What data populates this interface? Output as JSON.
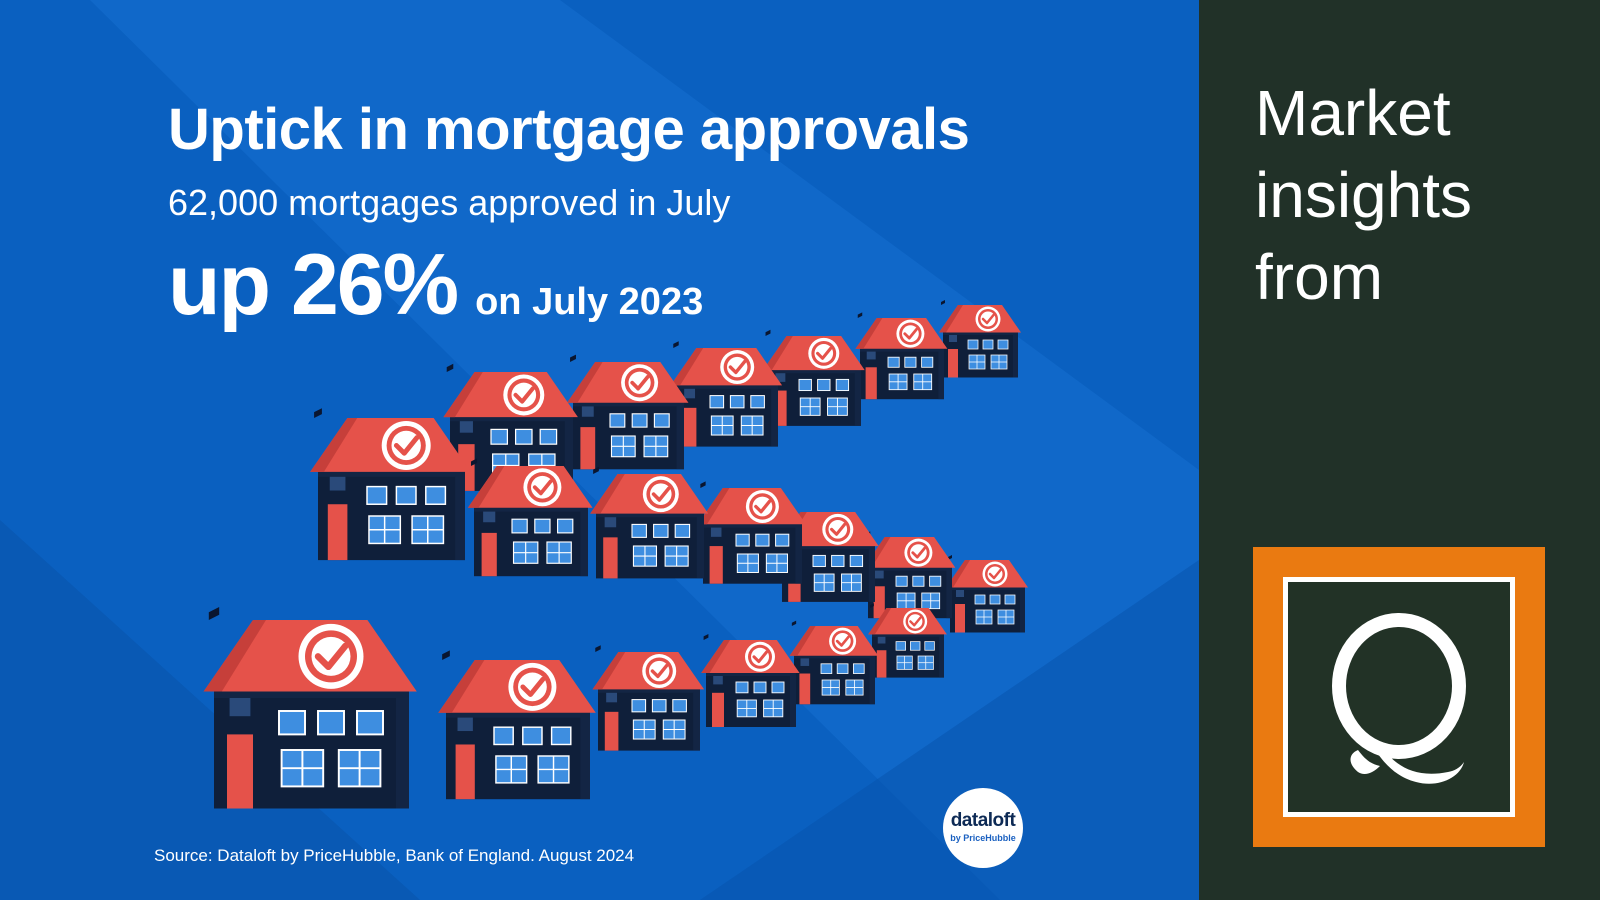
{
  "headline": "Uptick in mortgage approvals",
  "subline": "62,000 mortgages approved in July",
  "stat": {
    "main": "up 26%",
    "suffix": "on July 2023"
  },
  "source": "Source: Dataloft by PriceHubble, Bank of England. August 2024",
  "dataloft_logo": {
    "name": "dataloft",
    "byline": "by PriceHubble"
  },
  "tagline": [
    "Market",
    "insights",
    "from"
  ],
  "brand_logo": {
    "letter": "Q",
    "outer_color": "#ea7a11",
    "inner_color": "#223226"
  },
  "colors": {
    "background_blue": "#0a60c0",
    "roof_red": "#e5524a",
    "house_navy": "#0f1f3a",
    "window_blue": "#3e8ee0",
    "dark_panel": "#213128"
  },
  "icons": {
    "house": "house-icon",
    "check": "check-badge-icon"
  }
}
